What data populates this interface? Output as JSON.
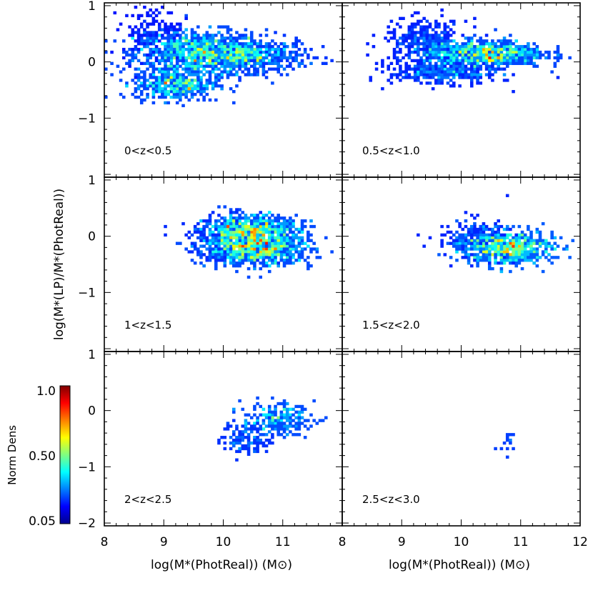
{
  "chart_data": {
    "type": "heatmap",
    "shared_x_label": "log(M*(PhotReal)) (M⊙)",
    "shared_y_label": "log(M*(LP)/M*(PhotReal))",
    "xlim": [
      8,
      12
    ],
    "ylim": [
      -2.05,
      1.05
    ],
    "x_ticks": [
      "8",
      "9",
      "10",
      "11",
      "8",
      "9",
      "10",
      "11",
      "12"
    ],
    "y_ticks": [
      "1",
      "0",
      "−1"
    ],
    "y_ticks_bottom": [
      "1",
      "0",
      "−1",
      "−2"
    ],
    "colorbar": {
      "label": "Norm Dens",
      "ticks": [
        "1.0",
        "0.50",
        "0.05"
      ],
      "range": [
        0.05,
        1.0
      ]
    },
    "panels": [
      {
        "label": "0<z<0.5",
        "xlim": [
          8,
          12
        ],
        "blobs": [
          {
            "x": 9.6,
            "y": 0.15,
            "sx": 0.55,
            "sy": 0.2,
            "peak": 0.75,
            "n": 900
          },
          {
            "x": 10.5,
            "y": 0.1,
            "sx": 0.45,
            "sy": 0.14,
            "peak": 0.55,
            "n": 500
          },
          {
            "x": 9.2,
            "y": -0.4,
            "sx": 0.35,
            "sy": 0.14,
            "peak": 0.7,
            "n": 450
          },
          {
            "x": 8.8,
            "y": 0.5,
            "sx": 0.25,
            "sy": 0.25,
            "peak": 0.25,
            "n": 180
          }
        ]
      },
      {
        "label": "0.5<z<1.0",
        "xlim": [
          8,
          12
        ],
        "blobs": [
          {
            "x": 10.4,
            "y": 0.15,
            "sx": 0.5,
            "sy": 0.12,
            "peak": 0.85,
            "n": 800
          },
          {
            "x": 9.4,
            "y": 0.35,
            "sx": 0.35,
            "sy": 0.2,
            "peak": 0.4,
            "n": 350
          },
          {
            "x": 9.7,
            "y": -0.2,
            "sx": 0.45,
            "sy": 0.1,
            "peak": 0.45,
            "n": 350
          }
        ]
      },
      {
        "label": "1<z<1.5",
        "xlim": [
          8,
          12
        ],
        "blobs": [
          {
            "x": 10.5,
            "y": 0.1,
            "sx": 0.4,
            "sy": 0.14,
            "peak": 0.85,
            "n": 700
          },
          {
            "x": 10.6,
            "y": -0.25,
            "sx": 0.45,
            "sy": 0.14,
            "peak": 0.85,
            "n": 700
          },
          {
            "x": 10.1,
            "y": -0.05,
            "sx": 0.35,
            "sy": 0.2,
            "peak": 0.5,
            "n": 250
          }
        ]
      },
      {
        "label": "1.5<z<2.0",
        "xlim": [
          8,
          12
        ],
        "blobs": [
          {
            "x": 10.8,
            "y": -0.2,
            "sx": 0.38,
            "sy": 0.15,
            "peak": 0.8,
            "n": 600
          },
          {
            "x": 10.2,
            "y": -0.05,
            "sx": 0.3,
            "sy": 0.18,
            "peak": 0.35,
            "n": 200
          }
        ]
      },
      {
        "label": "2<z<2.5",
        "xlim": [
          8,
          12
        ],
        "blobs": [
          {
            "x": 10.9,
            "y": -0.15,
            "sx": 0.3,
            "sy": 0.14,
            "peak": 0.45,
            "n": 220
          },
          {
            "x": 10.4,
            "y": -0.5,
            "sx": 0.2,
            "sy": 0.15,
            "peak": 0.3,
            "n": 120
          }
        ]
      },
      {
        "label": "2.5<z<3.0",
        "xlim": [
          8,
          12
        ],
        "blobs": [
          {
            "x": 10.75,
            "y": -0.5,
            "sx": 0.08,
            "sy": 0.14,
            "peak": 0.15,
            "n": 14
          }
        ]
      }
    ]
  }
}
